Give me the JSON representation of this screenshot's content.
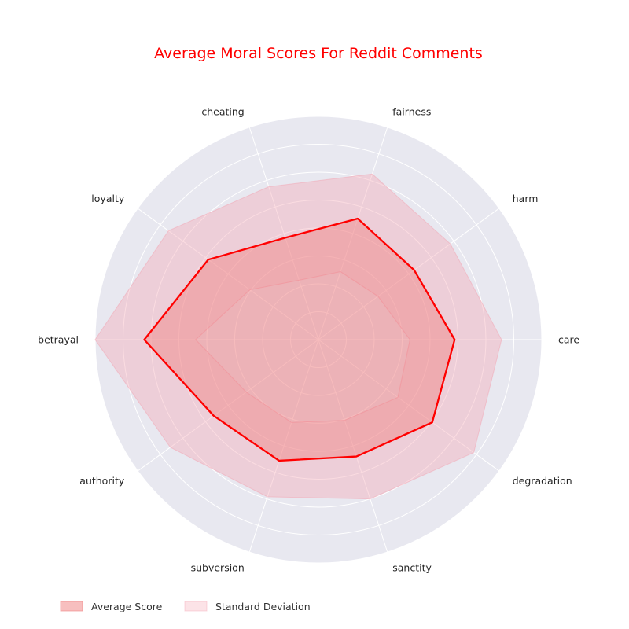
{
  "chart_data": {
    "type": "radar",
    "title": "Average Moral Scores For Reddit Comments",
    "categories": [
      "care",
      "harm",
      "fairness",
      "cheating",
      "loyalty",
      "betrayal",
      "authority",
      "subversion",
      "sanctity",
      "degradation"
    ],
    "rlim": [
      0,
      1.0
    ],
    "ring_count": 8,
    "grid": true,
    "legend_position": "bottom-left",
    "series": [
      {
        "name": "Average Score",
        "values": [
          0.61,
          0.53,
          0.57,
          0.48,
          0.61,
          0.78,
          0.58,
          0.57,
          0.55,
          0.63
        ],
        "line_color": "#ff0000",
        "fill_color": "#f08080"
      },
      {
        "name": "Standard Deviation",
        "band_inner": [
          0.41,
          0.33,
          0.32,
          0.28,
          0.38,
          0.55,
          0.4,
          0.39,
          0.38,
          0.44
        ],
        "band_outer": [
          0.82,
          0.73,
          0.78,
          0.72,
          0.83,
          1.0,
          0.82,
          0.74,
          0.75,
          0.86
        ],
        "fill_color": "#f4a3b1"
      }
    ],
    "colors": {
      "title": "#ff0000",
      "plot_background": "#e8e8f0",
      "grid": "#ffffff"
    }
  }
}
